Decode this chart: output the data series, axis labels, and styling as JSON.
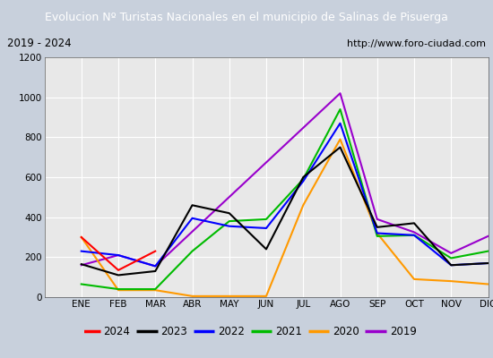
{
  "title": "Evolucion Nº Turistas Nacionales en el municipio de Salinas de Pisuerga",
  "subtitle_left": "2019 - 2024",
  "subtitle_right": "http://www.foro-ciudad.com",
  "months": [
    "",
    "ENE",
    "FEB",
    "MAR",
    "ABR",
    "MAY",
    "JUN",
    "JUL",
    "AGO",
    "SEP",
    "OCT",
    "NOV",
    "DIC"
  ],
  "ylim": [
    0,
    1200
  ],
  "yticks": [
    0,
    200,
    400,
    600,
    800,
    1000,
    1200
  ],
  "series": {
    "2024": {
      "color": "#ff0000",
      "values": [
        null,
        300,
        135,
        230,
        null,
        null,
        null,
        null,
        null,
        null,
        null,
        null,
        null
      ]
    },
    "2023": {
      "color": "#000000",
      "values": [
        null,
        165,
        110,
        130,
        460,
        420,
        240,
        600,
        750,
        350,
        370,
        160,
        170
      ]
    },
    "2022": {
      "color": "#0000ff",
      "values": [
        null,
        230,
        210,
        155,
        395,
        355,
        345,
        580,
        870,
        320,
        310,
        160,
        170
      ]
    },
    "2021": {
      "color": "#00bb00",
      "values": [
        null,
        65,
        40,
        40,
        230,
        380,
        390,
        590,
        940,
        305,
        310,
        195,
        230
      ]
    },
    "2020": {
      "color": "#ff9900",
      "values": [
        null,
        300,
        35,
        35,
        5,
        5,
        5,
        460,
        790,
        320,
        90,
        80,
        65
      ]
    },
    "2019": {
      "color": "#9900cc",
      "values": [
        null,
        160,
        210,
        155,
        null,
        null,
        null,
        null,
        1020,
        390,
        325,
        220,
        305
      ]
    }
  },
  "legend_order": [
    "2024",
    "2023",
    "2022",
    "2021",
    "2020",
    "2019"
  ],
  "plot_bg_color": "#e8e8e8",
  "fig_bg_color": "#c8d0dc",
  "title_bg_color": "#4472a8",
  "title_text_color": "#ffffff",
  "subtitle_bg_color": "#e0e0e0",
  "grid_color": "#ffffff",
  "border_color": "#000000"
}
